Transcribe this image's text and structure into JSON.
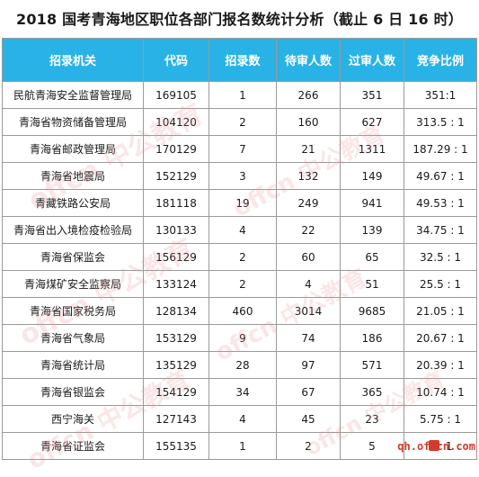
{
  "title": "2018 国考青海地区职位各部门报名数统计分析（截止 6 日 16 时）",
  "columns": [
    "招录机关",
    "代码",
    "招录数",
    "待审人数",
    "过审人数",
    "竞争比例"
  ],
  "rows": [
    [
      "民航青海安全监督管理局",
      "169105",
      "1",
      "266",
      "351",
      "351:1"
    ],
    [
      "青海省物资储备管理局",
      "104120",
      "2",
      "160",
      "627",
      "313.5 : 1"
    ],
    [
      "青海省邮政管理局",
      "170129",
      "7",
      "21",
      "1311",
      "187.29 : 1"
    ],
    [
      "青海省地震局",
      "152129",
      "3",
      "132",
      "149",
      "49.67 : 1"
    ],
    [
      "青藏铁路公安局",
      "181118",
      "19",
      "249",
      "941",
      "49.53 : 1"
    ],
    [
      "青海省出入境检疫检验局",
      "130133",
      "4",
      "22",
      "139",
      "34.75 : 1"
    ],
    [
      "青海省保监会",
      "156129",
      "2",
      "60",
      "65",
      "32.5 : 1"
    ],
    [
      "青海煤矿安全监察局",
      "133124",
      "2",
      "4",
      "51",
      "25.5 : 1"
    ],
    [
      "青海省国家税务局",
      "128134",
      "460",
      "3014",
      "9685",
      "21.05 : 1"
    ],
    [
      "青海省气象局",
      "153129",
      "9",
      "74",
      "186",
      "20.67 : 1"
    ],
    [
      "青海省统计局",
      "135129",
      "28",
      "97",
      "571",
      "20.39 : 1"
    ],
    [
      "青海省银监会",
      "154129",
      "34",
      "67",
      "365",
      "10.74 : 1"
    ],
    [
      "西宁海关",
      "127143",
      "4",
      "45",
      "23",
      "5.75 : 1"
    ],
    [
      "青海省证监会",
      "155135",
      "1",
      "2",
      "5",
      "5 : 1"
    ]
  ],
  "watermarks": [
    "offcn 中公教育",
    "offcn 中公教育",
    "offcn 中公教育",
    "offcn 中公教育",
    "offcn 中公教育",
    "offcn 中公教育"
  ],
  "site": "qh.offcn.com",
  "colors": {
    "header_bg": "#29b2e6",
    "header_text": "#ffffff",
    "watermark": "#e68c8c",
    "site": "#d23a2b"
  }
}
